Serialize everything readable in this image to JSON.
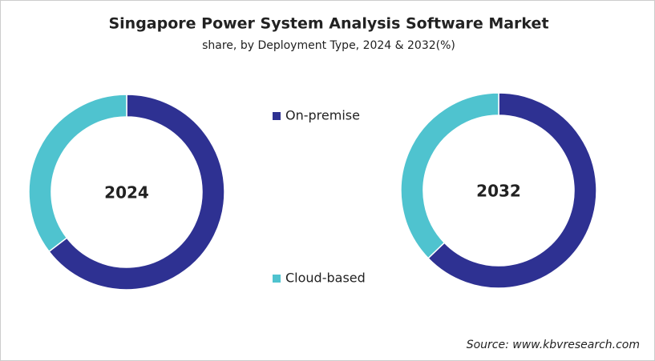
{
  "title": "Singapore Power System Analysis Software Market",
  "subtitle": "share, by Deployment Type, 2024 & 2032(%)",
  "source": "Source: www.kbvresearch.com",
  "chart_data": [
    {
      "type": "donut",
      "title": "2024",
      "categories": [
        "On-premise",
        "Cloud-based"
      ],
      "values": [
        64.6,
        35.4
      ],
      "colors": [
        "#2e3192",
        "#4fc3cf"
      ]
    },
    {
      "type": "donut",
      "title": "2032",
      "categories": [
        "On-premise",
        "Cloud-based"
      ],
      "values": [
        62.8,
        37.2
      ],
      "colors": [
        "#2e3192",
        "#4fc3cf"
      ]
    }
  ]
}
